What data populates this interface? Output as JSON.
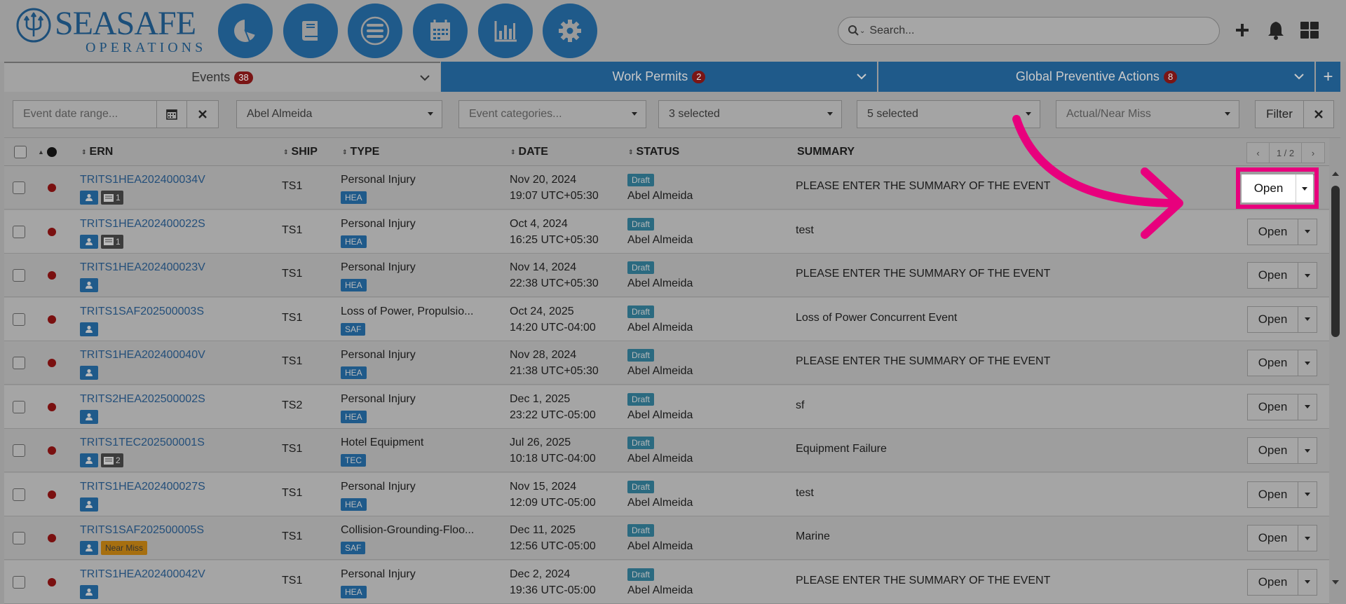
{
  "logo": {
    "brand": "SEASAFE",
    "sub": "OPERATIONS"
  },
  "nav": [
    {
      "name": "dashboard-nav-button",
      "icon": "pie-chart-icon"
    },
    {
      "name": "logbook-nav-button",
      "icon": "book-icon"
    },
    {
      "name": "menu-nav-button",
      "icon": "list-icon"
    },
    {
      "name": "calendar-nav-button",
      "icon": "calendar-icon"
    },
    {
      "name": "reports-nav-button",
      "icon": "bar-chart-icon"
    },
    {
      "name": "settings-nav-button",
      "icon": "gear-icon"
    }
  ],
  "search": {
    "placeholder": "Search..."
  },
  "tabs": {
    "events": {
      "label": "Events",
      "count": "38"
    },
    "permits": {
      "label": "Work Permits",
      "count": "2"
    },
    "gpa": {
      "label": "Global Preventive Actions",
      "count": "8"
    },
    "add": "+"
  },
  "filters": {
    "date_placeholder": "Event date range...",
    "person": "Abel Almeida",
    "categories_placeholder": "Event categories...",
    "select1": "3 selected",
    "select2": "5 selected",
    "actual_placeholder": "Actual/Near Miss",
    "filter_label": "Filter"
  },
  "table": {
    "headers": {
      "ern": "ERN",
      "ship": "SHIP",
      "type": "TYPE",
      "date": "DATE",
      "status": "STATUS",
      "summary": "SUMMARY"
    },
    "pager": {
      "prev": "‹",
      "page": "1 / 2",
      "next": "›"
    },
    "open_label": "Open",
    "rows": [
      {
        "ern": "TRITS1HEA202400034V",
        "comments": "1",
        "near": "",
        "ship": "TS1",
        "type": "Personal Injury",
        "tag": "HEA",
        "date": "Nov 20, 2024",
        "time": "19:07 UTC+05:30",
        "status": "Draft",
        "author": "Abel Almeida",
        "summary": "PLEASE ENTER THE SUMMARY OF THE EVENT"
      },
      {
        "ern": "TRITS1HEA202400022S",
        "comments": "1",
        "near": "",
        "ship": "TS1",
        "type": "Personal Injury",
        "tag": "HEA",
        "date": "Oct 4, 2024",
        "time": "16:25 UTC+05:30",
        "status": "Draft",
        "author": "Abel Almeida",
        "summary": "test"
      },
      {
        "ern": "TRITS1HEA202400023V",
        "comments": "",
        "near": "",
        "ship": "TS1",
        "type": "Personal Injury",
        "tag": "HEA",
        "date": "Nov 14, 2024",
        "time": "22:38 UTC+05:30",
        "status": "Draft",
        "author": "Abel Almeida",
        "summary": "PLEASE ENTER THE SUMMARY OF THE EVENT"
      },
      {
        "ern": "TRITS1SAF202500003S",
        "comments": "",
        "near": "",
        "ship": "TS1",
        "type": "Loss of Power, Propulsio...",
        "tag": "SAF",
        "date": "Oct 24, 2025",
        "time": "14:20 UTC-04:00",
        "status": "Draft",
        "author": "Abel Almeida",
        "summary": "Loss of Power Concurrent Event"
      },
      {
        "ern": "TRITS1HEA202400040V",
        "comments": "",
        "near": "",
        "ship": "TS1",
        "type": "Personal Injury",
        "tag": "HEA",
        "date": "Nov 28, 2024",
        "time": "21:38 UTC+05:30",
        "status": "Draft",
        "author": "Abel Almeida",
        "summary": "PLEASE ENTER THE SUMMARY OF THE EVENT"
      },
      {
        "ern": "TRITS2HEA202500002S",
        "comments": "",
        "near": "",
        "ship": "TS2",
        "type": "Personal Injury",
        "tag": "HEA",
        "date": "Dec 1, 2025",
        "time": "23:22 UTC-05:00",
        "status": "Draft",
        "author": "Abel Almeida",
        "summary": "sf"
      },
      {
        "ern": "TRITS1TEC202500001S",
        "comments": "2",
        "near": "",
        "ship": "TS1",
        "type": "Hotel Equipment",
        "tag": "TEC",
        "date": "Jul 26, 2025",
        "time": "10:18 UTC-04:00",
        "status": "Draft",
        "author": "Abel Almeida",
        "summary": "Equipment Failure"
      },
      {
        "ern": "TRITS1HEA202400027S",
        "comments": "",
        "near": "",
        "ship": "TS1",
        "type": "Personal Injury",
        "tag": "HEA",
        "date": "Nov 15, 2024",
        "time": "12:09 UTC-05:00",
        "status": "Draft",
        "author": "Abel Almeida",
        "summary": "test"
      },
      {
        "ern": "TRITS1SAF202500005S",
        "comments": "",
        "near": "Near Miss",
        "ship": "TS1",
        "type": "Collision-Grounding-Floo...",
        "tag": "SAF",
        "date": "Dec 11, 2025",
        "time": "12:56 UTC-05:00",
        "status": "Draft",
        "author": "Abel Almeida",
        "summary": "Marine"
      },
      {
        "ern": "TRITS1HEA202400042V",
        "comments": "",
        "near": "",
        "ship": "TS1",
        "type": "Personal Injury",
        "tag": "HEA",
        "date": "Dec 2, 2024",
        "time": "19:36 UTC-05:00",
        "status": "Draft",
        "author": "Abel Almeida",
        "summary": "PLEASE ENTER THE SUMMARY OF THE EVENT"
      }
    ]
  },
  "colors": {
    "primary": "#1f5a8a",
    "highlight": "#e8007d",
    "danger": "#7a1010"
  }
}
